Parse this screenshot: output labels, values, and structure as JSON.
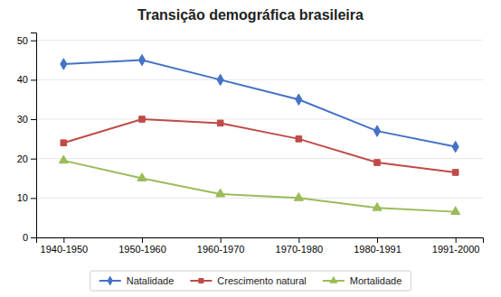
{
  "chart_data": {
    "type": "line",
    "title": "Transição demográfica brasileira",
    "categories": [
      "1940-1950",
      "1950-1960",
      "1960-1970",
      "1970-1980",
      "1980-1991",
      "1991-2000"
    ],
    "series": [
      {
        "name": "Natalidade",
        "color": "#4472C4",
        "marker": "diamond",
        "values": [
          44,
          45,
          40,
          35,
          27,
          23
        ]
      },
      {
        "name": "Crescimento natural",
        "color": "#BE4B48",
        "marker": "square",
        "values": [
          24,
          30,
          29,
          25,
          19,
          16.5
        ]
      },
      {
        "name": "Mortalidade",
        "color": "#9BBB59",
        "marker": "triangle",
        "values": [
          19.5,
          15,
          11,
          10,
          7.5,
          6.5
        ]
      }
    ],
    "ylim": [
      0,
      52
    ],
    "yticks": [
      0,
      10,
      20,
      30,
      40,
      50
    ],
    "grid": true,
    "legend": "bottom"
  }
}
